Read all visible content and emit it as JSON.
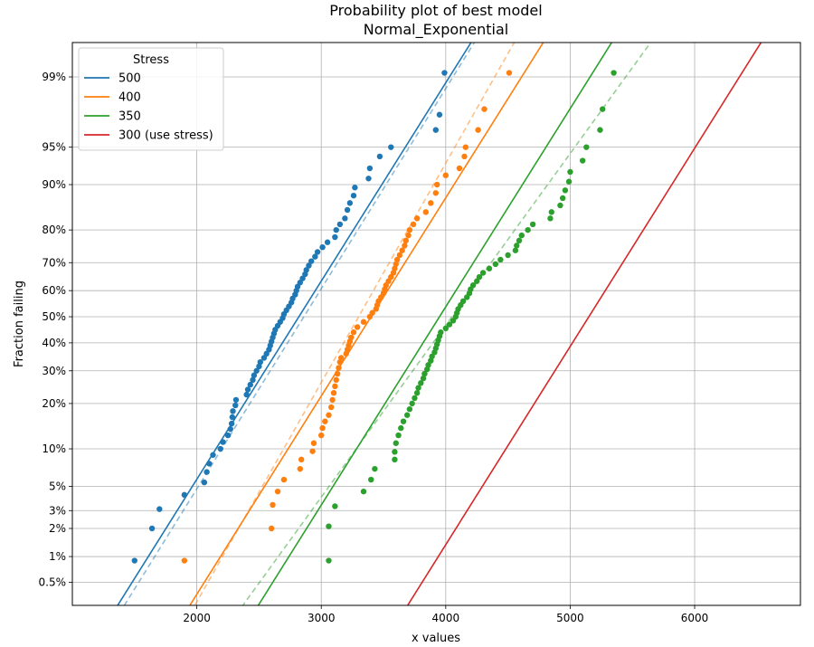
{
  "chart_data": {
    "type": "scatter",
    "title": "Probability plot of best model",
    "subtitle": "Normal_Exponential",
    "xlabel": "x values",
    "ylabel": "Fraction failing",
    "xlim": [
      1000,
      6850
    ],
    "x_ticks": [
      2000,
      3000,
      4000,
      5000,
      6000
    ],
    "y_ticks": [
      {
        "p": 0.005,
        "label": "0.5%"
      },
      {
        "p": 0.01,
        "label": "1%"
      },
      {
        "p": 0.02,
        "label": "2%"
      },
      {
        "p": 0.03,
        "label": "3%"
      },
      {
        "p": 0.05,
        "label": "5%"
      },
      {
        "p": 0.1,
        "label": "10%"
      },
      {
        "p": 0.2,
        "label": "20%"
      },
      {
        "p": 0.3,
        "label": "30%"
      },
      {
        "p": 0.4,
        "label": "40%"
      },
      {
        "p": 0.5,
        "label": "50%"
      },
      {
        "p": 0.6,
        "label": "60%"
      },
      {
        "p": 0.7,
        "label": "70%"
      },
      {
        "p": 0.8,
        "label": "80%"
      },
      {
        "p": 0.9,
        "label": "90%"
      },
      {
        "p": 0.95,
        "label": "95%"
      },
      {
        "p": 0.99,
        "label": "99%"
      }
    ],
    "y_scale": "normal probability",
    "grid": true,
    "legend": {
      "title": "Stress",
      "placement": "top-left"
    },
    "series": [
      {
        "name": "500",
        "color": "#1f77b4",
        "fitted_line": {
          "mean": 2820,
          "sd": 520
        },
        "dashed_line": {
          "mean": 2860,
          "sd": 515
        },
        "points": [
          [
            1500,
            0.009
          ],
          [
            1640,
            0.02
          ],
          [
            1700,
            0.031
          ],
          [
            1900,
            0.042
          ],
          [
            2060,
            0.054
          ],
          [
            2080,
            0.066
          ],
          [
            2100,
            0.077
          ],
          [
            2130,
            0.09
          ],
          [
            2190,
            0.1
          ],
          [
            2210,
            0.112
          ],
          [
            2250,
            0.125
          ],
          [
            2270,
            0.138
          ],
          [
            2280,
            0.15
          ],
          [
            2285,
            0.165
          ],
          [
            2290,
            0.18
          ],
          [
            2310,
            0.195
          ],
          [
            2315,
            0.21
          ],
          [
            2400,
            0.225
          ],
          [
            2410,
            0.24
          ],
          [
            2430,
            0.255
          ],
          [
            2450,
            0.27
          ],
          [
            2460,
            0.285
          ],
          [
            2480,
            0.3
          ],
          [
            2500,
            0.315
          ],
          [
            2510,
            0.33
          ],
          [
            2540,
            0.345
          ],
          [
            2560,
            0.36
          ],
          [
            2580,
            0.375
          ],
          [
            2590,
            0.39
          ],
          [
            2600,
            0.405
          ],
          [
            2610,
            0.42
          ],
          [
            2620,
            0.435
          ],
          [
            2630,
            0.45
          ],
          [
            2650,
            0.465
          ],
          [
            2670,
            0.48
          ],
          [
            2690,
            0.495
          ],
          [
            2700,
            0.51
          ],
          [
            2720,
            0.525
          ],
          [
            2740,
            0.54
          ],
          [
            2760,
            0.555
          ],
          [
            2770,
            0.57
          ],
          [
            2790,
            0.585
          ],
          [
            2800,
            0.6
          ],
          [
            2810,
            0.615
          ],
          [
            2830,
            0.63
          ],
          [
            2850,
            0.645
          ],
          [
            2870,
            0.66
          ],
          [
            2880,
            0.675
          ],
          [
            2900,
            0.69
          ],
          [
            2920,
            0.705
          ],
          [
            2950,
            0.72
          ],
          [
            2970,
            0.735
          ],
          [
            3010,
            0.75
          ],
          [
            3050,
            0.765
          ],
          [
            3110,
            0.78
          ],
          [
            3120,
            0.8
          ],
          [
            3150,
            0.815
          ],
          [
            3190,
            0.83
          ],
          [
            3210,
            0.85
          ],
          [
            3230,
            0.865
          ],
          [
            3260,
            0.88
          ],
          [
            3270,
            0.895
          ],
          [
            3380,
            0.91
          ],
          [
            3390,
            0.925
          ],
          [
            3470,
            0.94
          ],
          [
            3560,
            0.95
          ],
          [
            3920,
            0.965
          ],
          [
            3950,
            0.975
          ],
          [
            3990,
            0.991
          ]
        ]
      },
      {
        "name": "400",
        "color": "#ff7f0e",
        "fitted_line": {
          "mean": 3400,
          "sd": 520
        },
        "dashed_line": {
          "mean": 3300,
          "sd": 470
        },
        "points": [
          [
            1900,
            0.009
          ],
          [
            2600,
            0.02
          ],
          [
            2610,
            0.034
          ],
          [
            2650,
            0.045
          ],
          [
            2700,
            0.057
          ],
          [
            2830,
            0.07
          ],
          [
            2840,
            0.083
          ],
          [
            2930,
            0.096
          ],
          [
            2940,
            0.11
          ],
          [
            3000,
            0.125
          ],
          [
            3010,
            0.14
          ],
          [
            3030,
            0.155
          ],
          [
            3060,
            0.17
          ],
          [
            3080,
            0.19
          ],
          [
            3090,
            0.21
          ],
          [
            3100,
            0.23
          ],
          [
            3110,
            0.25
          ],
          [
            3120,
            0.27
          ],
          [
            3130,
            0.29
          ],
          [
            3140,
            0.31
          ],
          [
            3150,
            0.33
          ],
          [
            3160,
            0.345
          ],
          [
            3200,
            0.36
          ],
          [
            3210,
            0.375
          ],
          [
            3220,
            0.39
          ],
          [
            3230,
            0.405
          ],
          [
            3240,
            0.42
          ],
          [
            3260,
            0.44
          ],
          [
            3290,
            0.46
          ],
          [
            3340,
            0.48
          ],
          [
            3390,
            0.5
          ],
          [
            3410,
            0.515
          ],
          [
            3440,
            0.53
          ],
          [
            3450,
            0.545
          ],
          [
            3460,
            0.56
          ],
          [
            3480,
            0.575
          ],
          [
            3500,
            0.59
          ],
          [
            3510,
            0.605
          ],
          [
            3520,
            0.62
          ],
          [
            3540,
            0.635
          ],
          [
            3560,
            0.65
          ],
          [
            3580,
            0.665
          ],
          [
            3590,
            0.68
          ],
          [
            3600,
            0.695
          ],
          [
            3610,
            0.71
          ],
          [
            3630,
            0.725
          ],
          [
            3650,
            0.74
          ],
          [
            3670,
            0.755
          ],
          [
            3680,
            0.77
          ],
          [
            3700,
            0.785
          ],
          [
            3710,
            0.8
          ],
          [
            3740,
            0.815
          ],
          [
            3770,
            0.83
          ],
          [
            3840,
            0.845
          ],
          [
            3880,
            0.865
          ],
          [
            3920,
            0.885
          ],
          [
            3930,
            0.9
          ],
          [
            4000,
            0.915
          ],
          [
            4110,
            0.925
          ],
          [
            4150,
            0.94
          ],
          [
            4160,
            0.95
          ],
          [
            4260,
            0.965
          ],
          [
            4310,
            0.978
          ],
          [
            4510,
            0.991
          ]
        ]
      },
      {
        "name": "350",
        "color": "#2ca02c",
        "fitted_line": {
          "mean": 3950,
          "sd": 520
        },
        "dashed_line": {
          "mean": 4050,
          "sd": 600
        },
        "points": [
          [
            3060,
            0.009
          ],
          [
            3060,
            0.021
          ],
          [
            3110,
            0.033
          ],
          [
            3340,
            0.045
          ],
          [
            3400,
            0.057
          ],
          [
            3430,
            0.07
          ],
          [
            3590,
            0.083
          ],
          [
            3590,
            0.095
          ],
          [
            3600,
            0.11
          ],
          [
            3620,
            0.125
          ],
          [
            3640,
            0.14
          ],
          [
            3660,
            0.155
          ],
          [
            3690,
            0.17
          ],
          [
            3710,
            0.185
          ],
          [
            3730,
            0.2
          ],
          [
            3750,
            0.215
          ],
          [
            3770,
            0.23
          ],
          [
            3780,
            0.245
          ],
          [
            3800,
            0.26
          ],
          [
            3820,
            0.275
          ],
          [
            3830,
            0.29
          ],
          [
            3850,
            0.305
          ],
          [
            3860,
            0.32
          ],
          [
            3880,
            0.335
          ],
          [
            3890,
            0.35
          ],
          [
            3910,
            0.365
          ],
          [
            3920,
            0.38
          ],
          [
            3930,
            0.395
          ],
          [
            3940,
            0.41
          ],
          [
            3950,
            0.425
          ],
          [
            3960,
            0.44
          ],
          [
            4000,
            0.455
          ],
          [
            4030,
            0.47
          ],
          [
            4060,
            0.485
          ],
          [
            4080,
            0.5
          ],
          [
            4090,
            0.515
          ],
          [
            4100,
            0.53
          ],
          [
            4120,
            0.545
          ],
          [
            4140,
            0.56
          ],
          [
            4170,
            0.575
          ],
          [
            4190,
            0.59
          ],
          [
            4200,
            0.605
          ],
          [
            4220,
            0.62
          ],
          [
            4250,
            0.635
          ],
          [
            4270,
            0.65
          ],
          [
            4300,
            0.665
          ],
          [
            4350,
            0.68
          ],
          [
            4400,
            0.695
          ],
          [
            4440,
            0.71
          ],
          [
            4500,
            0.725
          ],
          [
            4560,
            0.74
          ],
          [
            4570,
            0.755
          ],
          [
            4590,
            0.77
          ],
          [
            4610,
            0.785
          ],
          [
            4660,
            0.8
          ],
          [
            4700,
            0.815
          ],
          [
            4840,
            0.83
          ],
          [
            4850,
            0.845
          ],
          [
            4920,
            0.86
          ],
          [
            4940,
            0.875
          ],
          [
            4960,
            0.89
          ],
          [
            4990,
            0.905
          ],
          [
            5000,
            0.92
          ],
          [
            5100,
            0.935
          ],
          [
            5130,
            0.95
          ],
          [
            5240,
            0.965
          ],
          [
            5260,
            0.978
          ],
          [
            5350,
            0.991
          ]
        ]
      },
      {
        "name": "300 (use stress)",
        "color": "#d62728",
        "fitted_line": {
          "mean": 5150,
          "sd": 520
        },
        "dashed_line": null,
        "points": []
      }
    ]
  }
}
